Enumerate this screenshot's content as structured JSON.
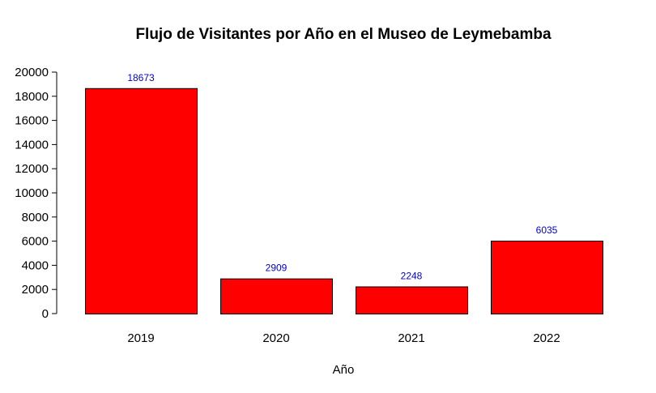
{
  "chart_data": {
    "type": "bar",
    "title": "Flujo de Visitantes por Año en el Museo de Leymebamba",
    "xlabel": "Año",
    "ylabel": "",
    "categories": [
      "2019",
      "2020",
      "2021",
      "2022"
    ],
    "values": [
      18673,
      2909,
      2248,
      6035
    ],
    "value_labels": [
      "18673",
      "2909",
      "2248",
      "6035"
    ],
    "ylim": [
      0,
      20000
    ],
    "yticks": [
      0,
      2000,
      4000,
      6000,
      8000,
      10000,
      12000,
      14000,
      16000,
      18000,
      20000
    ],
    "ytick_labels": [
      "0",
      "2000",
      "4000",
      "6000",
      "8000",
      "10000",
      "12000",
      "14000",
      "16000",
      "18000",
      "20000"
    ],
    "grid": false,
    "bar_color": "#ff0000",
    "bar_edge_color": "#000000",
    "value_label_color": "#0000cc"
  }
}
